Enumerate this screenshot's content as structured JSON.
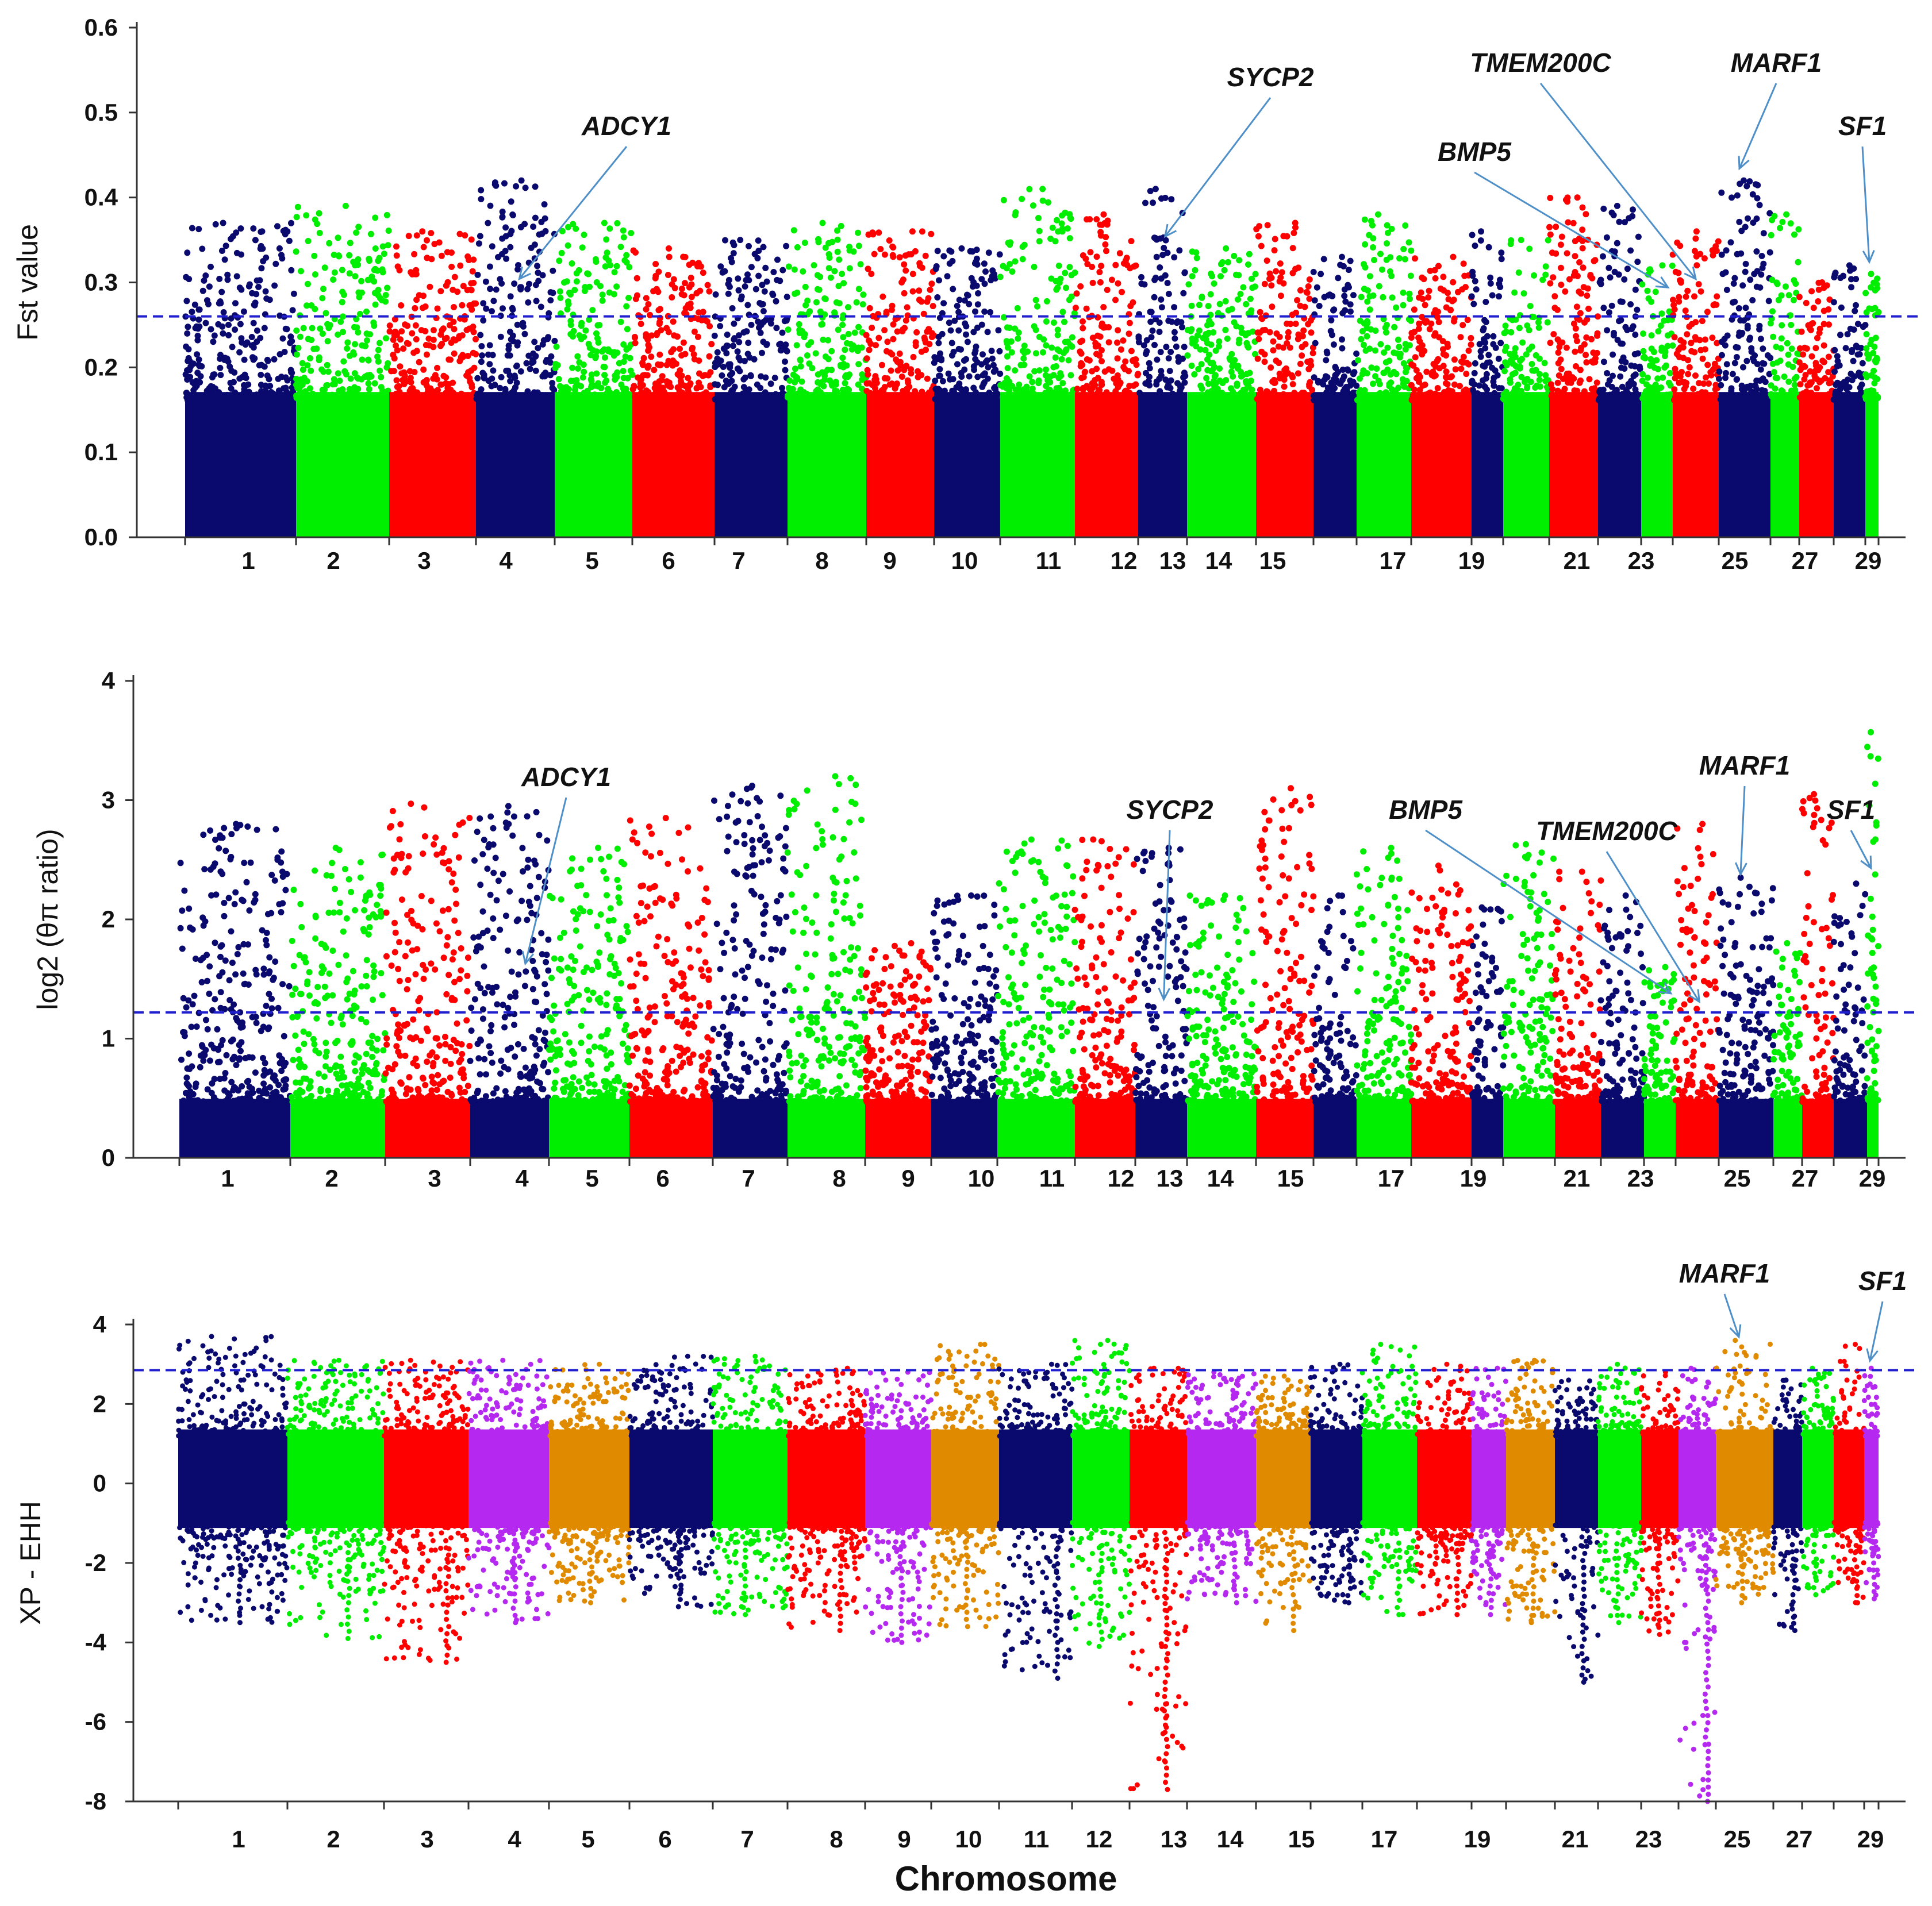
{
  "chart_data": [
    {
      "type": "scatter",
      "panel": "fst",
      "ylabel": "Fst value",
      "ylim": [
        0,
        0.6
      ],
      "yticks": [
        "0.0",
        "0.1",
        "0.2",
        "0.3",
        "0.4",
        "0.5",
        "0.6"
      ],
      "threshold": 0.26,
      "palette": [
        "#0a0a6e",
        "#00ee00",
        "#ff0000"
      ],
      "chromosome_labels": [
        "1",
        "2",
        "3",
        "4",
        "5",
        "6",
        "7",
        "8",
        "9",
        "10",
        "11",
        "12",
        "13",
        "14",
        "15",
        "17",
        "19",
        "21",
        "23",
        "25",
        "27",
        "29"
      ],
      "series": [
        {
          "chr": 1,
          "peak": 0.37
        },
        {
          "chr": 2,
          "peak": 0.39
        },
        {
          "chr": 3,
          "peak": 0.36
        },
        {
          "chr": 4,
          "peak": 0.42
        },
        {
          "chr": 5,
          "peak": 0.37
        },
        {
          "chr": 6,
          "peak": 0.34
        },
        {
          "chr": 7,
          "peak": 0.35
        },
        {
          "chr": 8,
          "peak": 0.37
        },
        {
          "chr": 9,
          "peak": 0.36
        },
        {
          "chr": 10,
          "peak": 0.34
        },
        {
          "chr": 11,
          "peak": 0.41
        },
        {
          "chr": 12,
          "peak": 0.38
        },
        {
          "chr": 13,
          "peak": 0.41
        },
        {
          "chr": 14,
          "peak": 0.34
        },
        {
          "chr": 15,
          "peak": 0.37
        },
        {
          "chr": 16,
          "peak": 0.33
        },
        {
          "chr": 17,
          "peak": 0.38
        },
        {
          "chr": 18,
          "peak": 0.33
        },
        {
          "chr": 19,
          "peak": 0.36
        },
        {
          "chr": 20,
          "peak": 0.35
        },
        {
          "chr": 21,
          "peak": 0.4
        },
        {
          "chr": 22,
          "peak": 0.39
        },
        {
          "chr": 23,
          "peak": 0.32
        },
        {
          "chr": 24,
          "peak": 0.36
        },
        {
          "chr": 25,
          "peak": 0.42
        },
        {
          "chr": 26,
          "peak": 0.38
        },
        {
          "chr": 27,
          "peak": 0.3
        },
        {
          "chr": 28,
          "peak": 0.32
        },
        {
          "chr": 29,
          "peak": 0.31
        }
      ],
      "annotations": [
        {
          "label": "ADCY1",
          "chr": 4,
          "pos": 0.55,
          "value": 0.3
        },
        {
          "label": "SYCP2",
          "chr": 13,
          "pos": 0.55,
          "value": 0.35
        },
        {
          "label": "BMP5",
          "chr": 23,
          "pos": 0.85,
          "value": 0.29
        },
        {
          "label": "TMEM200C",
          "chr": 24,
          "pos": 0.5,
          "value": 0.3
        },
        {
          "label": "MARF1",
          "chr": 25,
          "pos": 0.4,
          "value": 0.43
        },
        {
          "label": "SF1",
          "chr": 29,
          "pos": 0.3,
          "value": 0.32
        }
      ]
    },
    {
      "type": "scatter",
      "panel": "pi_ratio",
      "ylabel": "log2 (θπ ratio)",
      "ylim": [
        0,
        4
      ],
      "yticks": [
        "0",
        "1",
        "2",
        "3",
        "4"
      ],
      "threshold": 1.22,
      "palette": [
        "#0a0a6e",
        "#00ee00",
        "#ff0000"
      ],
      "chromosome_labels": [
        "1",
        "2",
        "3",
        "4",
        "5",
        "6",
        "7",
        "8",
        "9",
        "10",
        "11",
        "12",
        "13",
        "14",
        "15",
        "17",
        "19",
        "21",
        "23",
        "25",
        "27",
        "29"
      ],
      "series": [
        {
          "chr": 1,
          "peak": 2.8
        },
        {
          "chr": 2,
          "peak": 2.6
        },
        {
          "chr": 3,
          "peak": 2.97
        },
        {
          "chr": 4,
          "peak": 2.95
        },
        {
          "chr": 5,
          "peak": 2.6
        },
        {
          "chr": 6,
          "peak": 2.85
        },
        {
          "chr": 7,
          "peak": 3.12
        },
        {
          "chr": 8,
          "peak": 3.2
        },
        {
          "chr": 9,
          "peak": 1.8
        },
        {
          "chr": 10,
          "peak": 2.2
        },
        {
          "chr": 11,
          "peak": 2.67
        },
        {
          "chr": 12,
          "peak": 2.67
        },
        {
          "chr": 13,
          "peak": 2.6
        },
        {
          "chr": 14,
          "peak": 2.2
        },
        {
          "chr": 15,
          "peak": 3.1
        },
        {
          "chr": 16,
          "peak": 2.2
        },
        {
          "chr": 17,
          "peak": 2.6
        },
        {
          "chr": 18,
          "peak": 2.45
        },
        {
          "chr": 19,
          "peak": 2.1
        },
        {
          "chr": 20,
          "peak": 2.63
        },
        {
          "chr": 21,
          "peak": 2.4
        },
        {
          "chr": 22,
          "peak": 2.2
        },
        {
          "chr": 23,
          "peak": 1.6
        },
        {
          "chr": 24,
          "peak": 2.8
        },
        {
          "chr": 25,
          "peak": 2.35
        },
        {
          "chr": 26,
          "peak": 1.8
        },
        {
          "chr": 27,
          "peak": 3.05
        },
        {
          "chr": 28,
          "peak": 2.3
        },
        {
          "chr": 29,
          "peak": 3.57
        }
      ],
      "annotations": [
        {
          "label": "ADCY1",
          "chr": 4,
          "pos": 0.7,
          "value": 1.6
        },
        {
          "label": "SYCP2",
          "chr": 13,
          "pos": 0.55,
          "value": 1.3
        },
        {
          "label": "BMP5",
          "chr": 23,
          "pos": 0.85,
          "value": 1.35
        },
        {
          "label": "TMEM200C",
          "chr": 24,
          "pos": 0.55,
          "value": 1.28
        },
        {
          "label": "MARF1",
          "chr": 25,
          "pos": 0.4,
          "value": 2.35
        },
        {
          "label": "SF1",
          "chr": 29,
          "pos": 0.35,
          "value": 2.4
        }
      ]
    },
    {
      "type": "scatter",
      "panel": "xpehh",
      "ylabel": "XP - EHH",
      "xlabel": "Chromosome",
      "ylim": [
        -8,
        4
      ],
      "yticks": [
        "-8",
        "-6",
        "-4",
        "-2",
        "0",
        "2",
        "4"
      ],
      "threshold": 2.85,
      "palette": [
        "#0a0a6e",
        "#00ee00",
        "#ff0000",
        "#b428f0",
        "#e08a00"
      ],
      "chromosome_labels": [
        "1",
        "2",
        "3",
        "4",
        "5",
        "6",
        "7",
        "8",
        "9",
        "10",
        "11",
        "12",
        "13",
        "14",
        "15",
        "17",
        "19",
        "21",
        "23",
        "25",
        "27",
        "29"
      ],
      "series": [
        {
          "chr": 1,
          "max": 3.7,
          "min": -3.5
        },
        {
          "chr": 2,
          "max": 3.1,
          "min": -3.9
        },
        {
          "chr": 3,
          "max": 3.1,
          "min": -4.5
        },
        {
          "chr": 4,
          "max": 3.1,
          "min": -3.5
        },
        {
          "chr": 5,
          "max": 3.0,
          "min": -3.0
        },
        {
          "chr": 6,
          "max": 3.2,
          "min": -3.1
        },
        {
          "chr": 7,
          "max": 3.2,
          "min": -3.3
        },
        {
          "chr": 8,
          "max": 2.9,
          "min": -3.7
        },
        {
          "chr": 9,
          "max": 2.8,
          "min": -4.0
        },
        {
          "chr": 10,
          "max": 3.5,
          "min": -3.6
        },
        {
          "chr": 11,
          "max": 3.0,
          "min": -4.9
        },
        {
          "chr": 12,
          "max": 3.6,
          "min": -4.1
        },
        {
          "chr": 13,
          "max": 2.9,
          "min": -7.7
        },
        {
          "chr": 14,
          "max": 2.8,
          "min": -3.0
        },
        {
          "chr": 15,
          "max": 2.7,
          "min": -3.7
        },
        {
          "chr": 16,
          "max": 3.0,
          "min": -3.0
        },
        {
          "chr": 17,
          "max": 3.5,
          "min": -3.3
        },
        {
          "chr": 18,
          "max": 3.0,
          "min": -3.3
        },
        {
          "chr": 19,
          "max": 2.9,
          "min": -3.3
        },
        {
          "chr": 20,
          "max": 3.1,
          "min": -3.5
        },
        {
          "chr": 21,
          "max": 2.6,
          "min": -5.0
        },
        {
          "chr": 22,
          "max": 3.0,
          "min": -3.5
        },
        {
          "chr": 23,
          "max": 2.8,
          "min": -3.8
        },
        {
          "chr": 24,
          "max": 2.9,
          "min": -8.0
        },
        {
          "chr": 25,
          "max": 3.6,
          "min": -3.0
        },
        {
          "chr": 26,
          "max": 2.6,
          "min": -3.7
        },
        {
          "chr": 27,
          "max": 2.9,
          "min": -2.8
        },
        {
          "chr": 28,
          "max": 3.5,
          "min": -3.0
        },
        {
          "chr": 29,
          "max": 2.9,
          "min": -2.9
        }
      ],
      "annotations": [
        {
          "label": "MARF1",
          "chr": 25,
          "pos": 0.4,
          "value": 3.6
        },
        {
          "label": "SF1",
          "chr": 29,
          "pos": 0.4,
          "value": 3.0
        }
      ]
    }
  ]
}
